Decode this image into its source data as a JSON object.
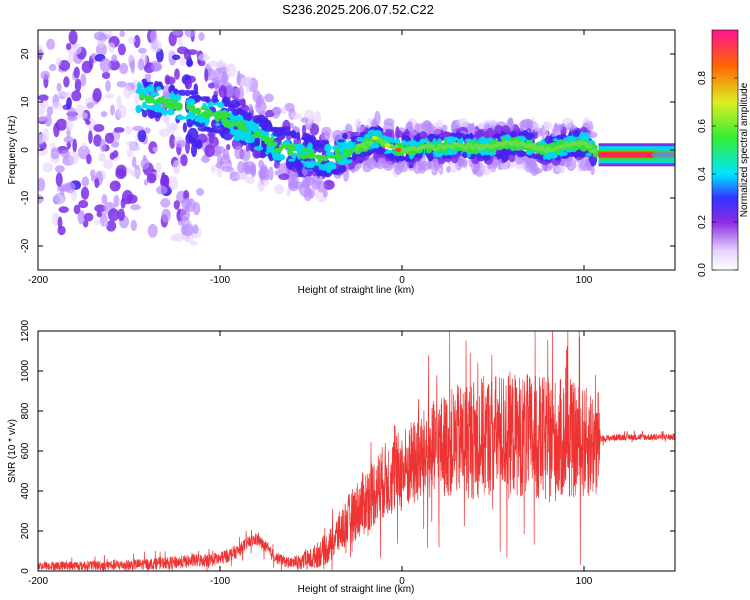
{
  "title": "S236.2025.206.07.52.C22",
  "colors": {
    "snr_line": "#ee3333",
    "spec_low": "#7a3cff",
    "spec_mid": "#00e6e6",
    "spec_ridge": "#33dd33"
  },
  "chart_data": [
    {
      "type": "heatmap",
      "xlabel": "Height of straight line (km)",
      "ylabel": "Frequency (Hz)",
      "xlim": [
        -200,
        150
      ],
      "ylim": [
        -25,
        25
      ],
      "xticks": [
        -200,
        -100,
        0,
        100
      ],
      "yticks": [
        -20,
        -10,
        0,
        10,
        20
      ],
      "colorbar": {
        "label": "Normalized spectral amplitude",
        "range": [
          0,
          1
        ],
        "ticks": [
          0.0,
          0.2,
          0.4,
          0.6,
          0.8
        ]
      },
      "ridge_x": [
        -140,
        -120,
        -100,
        -90,
        -80,
        -70,
        -60,
        -50,
        -40,
        -30,
        -20,
        -15,
        -10,
        -5,
        0,
        10,
        20,
        30,
        40,
        50,
        60,
        70,
        80,
        90,
        100,
        108,
        120,
        150
      ],
      "ridge_y": [
        11,
        9,
        7,
        5,
        3,
        1,
        0,
        -1,
        -2,
        0,
        1,
        2.5,
        1.5,
        0.5,
        0,
        0.5,
        0.5,
        1,
        0.5,
        0.8,
        1.5,
        1,
        0,
        1,
        1.5,
        -1,
        -1,
        -1
      ],
      "sharp_band": {
        "x_start": 108,
        "x_end": 150,
        "center": -1,
        "half_width": 1.5
      }
    },
    {
      "type": "line",
      "xlabel": "Height of straight line (km)",
      "ylabel": "SNR (10 * v/v)",
      "xlim": [
        -200,
        150
      ],
      "ylim": [
        0,
        1200
      ],
      "xticks": [
        -200,
        -100,
        0,
        100
      ],
      "yticks": [
        0,
        200,
        400,
        600,
        800,
        1000,
        1200
      ],
      "envelope_x": [
        -200,
        -150,
        -130,
        -100,
        -95,
        -90,
        -85,
        -80,
        -75,
        -70,
        -65,
        -60,
        -50,
        -40,
        -30,
        -20,
        -10,
        0,
        10,
        20,
        30,
        40,
        50,
        60,
        70,
        80,
        90,
        100,
        108,
        109,
        120,
        150
      ],
      "envelope_y": [
        25,
        30,
        40,
        60,
        80,
        100,
        140,
        160,
        120,
        70,
        50,
        40,
        60,
        120,
        250,
        350,
        450,
        500,
        560,
        620,
        650,
        660,
        680,
        690,
        670,
        650,
        660,
        640,
        640,
        660,
        670,
        670
      ],
      "noise_amplitude_x": [
        -200,
        -100,
        -60,
        -40,
        -20,
        0,
        20,
        40,
        60,
        80,
        100,
        108,
        109,
        150
      ],
      "noise_amplitude_y": [
        15,
        25,
        20,
        60,
        120,
        150,
        180,
        220,
        220,
        230,
        200,
        200,
        12,
        12
      ]
    }
  ]
}
